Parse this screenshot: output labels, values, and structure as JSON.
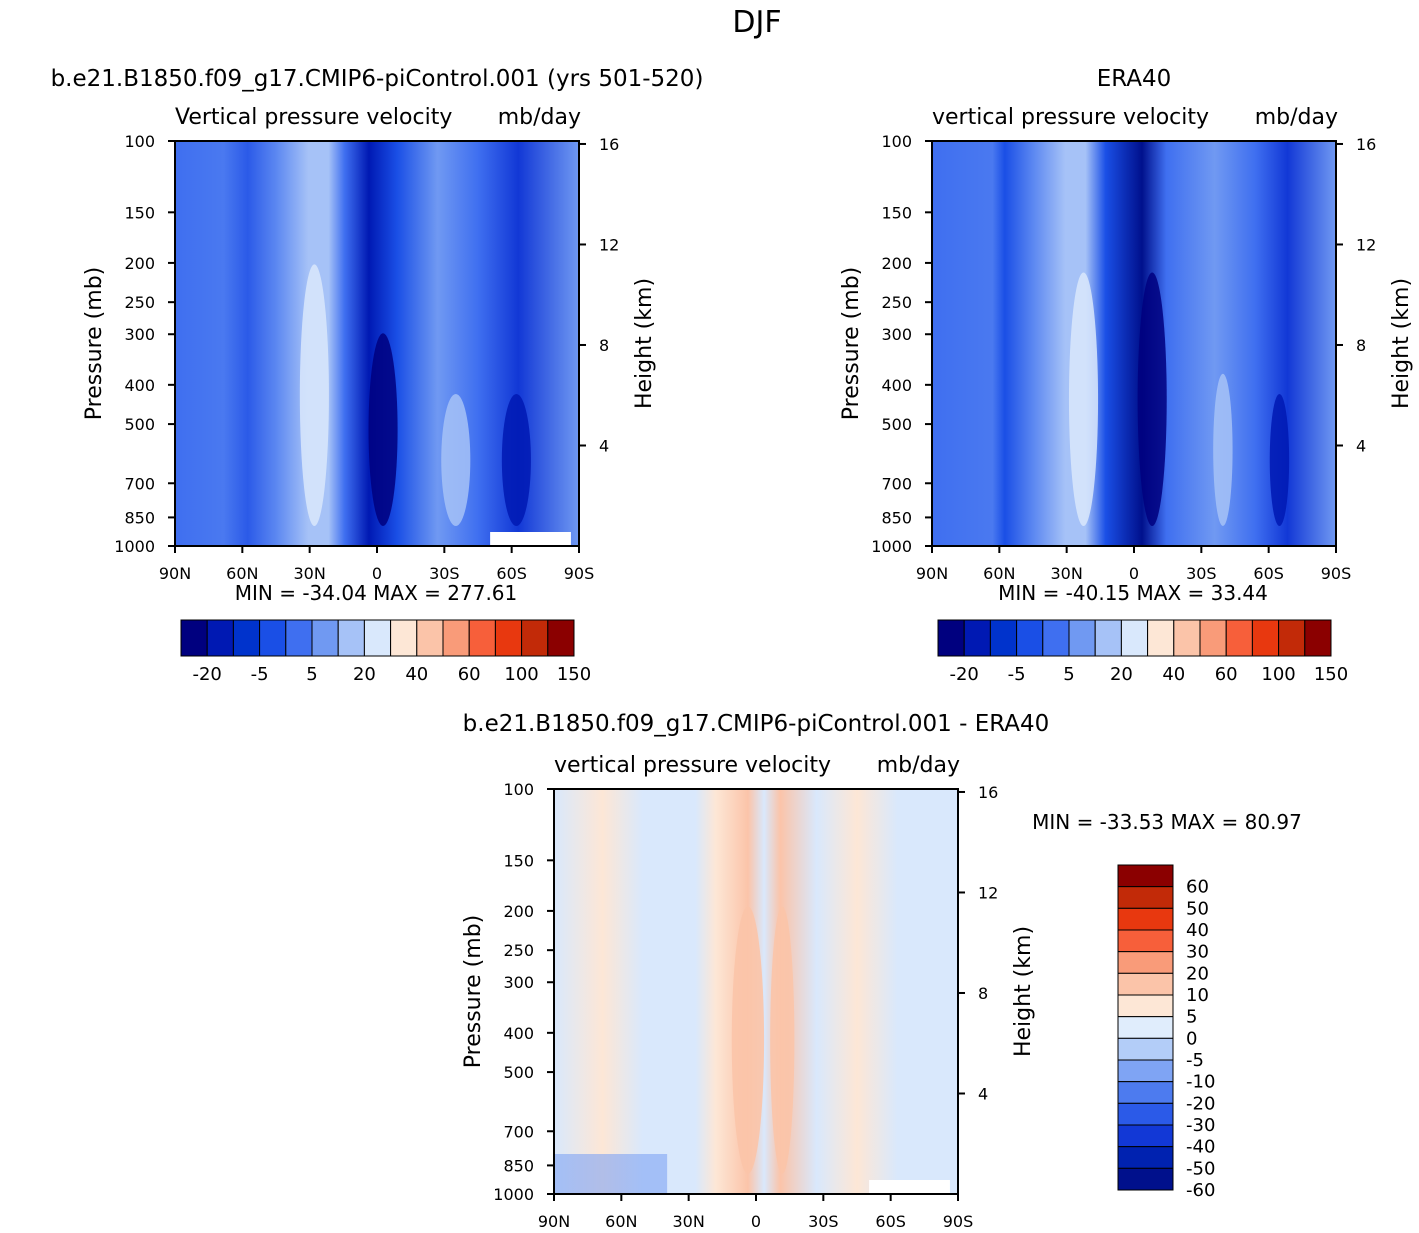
{
  "figure_title": "DJF",
  "chart_data": [
    {
      "type": "heatmap",
      "title": "b.e21.B1850.f09_g17.CMIP6-piControl.001 (yrs 501-520)",
      "subtitle_left": "Vertical pressure velocity",
      "subtitle_right": "mb/day",
      "ylabel": "Pressure (mb)",
      "ylabel_right": "Height (km)",
      "x_ticks": [
        "90N",
        "60N",
        "30N",
        "0",
        "30S",
        "60S",
        "90S"
      ],
      "y_ticks": [
        "100",
        "150",
        "200",
        "250",
        "300",
        "400",
        "500",
        "700",
        "850",
        "1000"
      ],
      "y_ticks_right": [
        "16",
        "12",
        "8",
        "4"
      ],
      "y_scale": "log",
      "ylim": [
        1000,
        100
      ],
      "min_label": "MIN = -34.04",
      "max_label": "MAX = 277.61",
      "colorbar_ticks": [
        "-20",
        "-5",
        "5",
        "20",
        "40",
        "60",
        "100",
        "150"
      ]
    },
    {
      "type": "heatmap",
      "title": "ERA40",
      "subtitle_left": "vertical pressure velocity",
      "subtitle_right": "mb/day",
      "ylabel": "Pressure (mb)",
      "ylabel_right": "Height (km)",
      "x_ticks": [
        "90N",
        "60N",
        "30N",
        "0",
        "30S",
        "60S",
        "90S"
      ],
      "y_ticks": [
        "100",
        "150",
        "200",
        "250",
        "300",
        "400",
        "500",
        "700",
        "850",
        "1000"
      ],
      "y_ticks_right": [
        "16",
        "12",
        "8",
        "4"
      ],
      "y_scale": "log",
      "ylim": [
        1000,
        100
      ],
      "min_label": "MIN = -40.15",
      "max_label": "MAX = 33.44",
      "colorbar_ticks": [
        "-20",
        "-5",
        "5",
        "20",
        "40",
        "60",
        "100",
        "150"
      ]
    },
    {
      "type": "heatmap",
      "title": "b.e21.B1850.f09_g17.CMIP6-piControl.001 - ERA40",
      "subtitle_left": "vertical pressure velocity",
      "subtitle_right": "mb/day",
      "ylabel": "Pressure (mb)",
      "ylabel_right": "Height (km)",
      "x_ticks": [
        "90N",
        "60N",
        "30N",
        "0",
        "30S",
        "60S",
        "90S"
      ],
      "y_ticks": [
        "100",
        "150",
        "200",
        "250",
        "300",
        "400",
        "500",
        "700",
        "850",
        "1000"
      ],
      "y_ticks_right": [
        "16",
        "12",
        "8",
        "4"
      ],
      "y_scale": "log",
      "ylim": [
        1000,
        100
      ],
      "min_label": "MIN = -33.53",
      "max_label": "MAX = 80.97",
      "colorbar_ticks": [
        "60",
        "50",
        "40",
        "30",
        "20",
        "10",
        "5",
        "0",
        "-5",
        "-10",
        "-20",
        "-30",
        "-40",
        "-50",
        "-60"
      ]
    }
  ],
  "colors": {
    "horizontal_colorbar": [
      "#00007f",
      "#0019b3",
      "#0033cc",
      "#1a4fe6",
      "#3f6ff0",
      "#7099f2",
      "#a6c2f7",
      "#d9e8fc",
      "#fde7d6",
      "#fbc4a9",
      "#f99b79",
      "#f75f3a",
      "#e8380f",
      "#c22a08",
      "#8b0000"
    ],
    "vertical_colorbar": [
      "#8b0000",
      "#c22a08",
      "#e8380f",
      "#f75f3a",
      "#f99b79",
      "#fbc4a9",
      "#fde7d6",
      "#e0edfc",
      "#b3cdf8",
      "#7fa4f4",
      "#4d7bef",
      "#2b5ae8",
      "#1238d6",
      "#0022b0",
      "#00108c"
    ]
  }
}
